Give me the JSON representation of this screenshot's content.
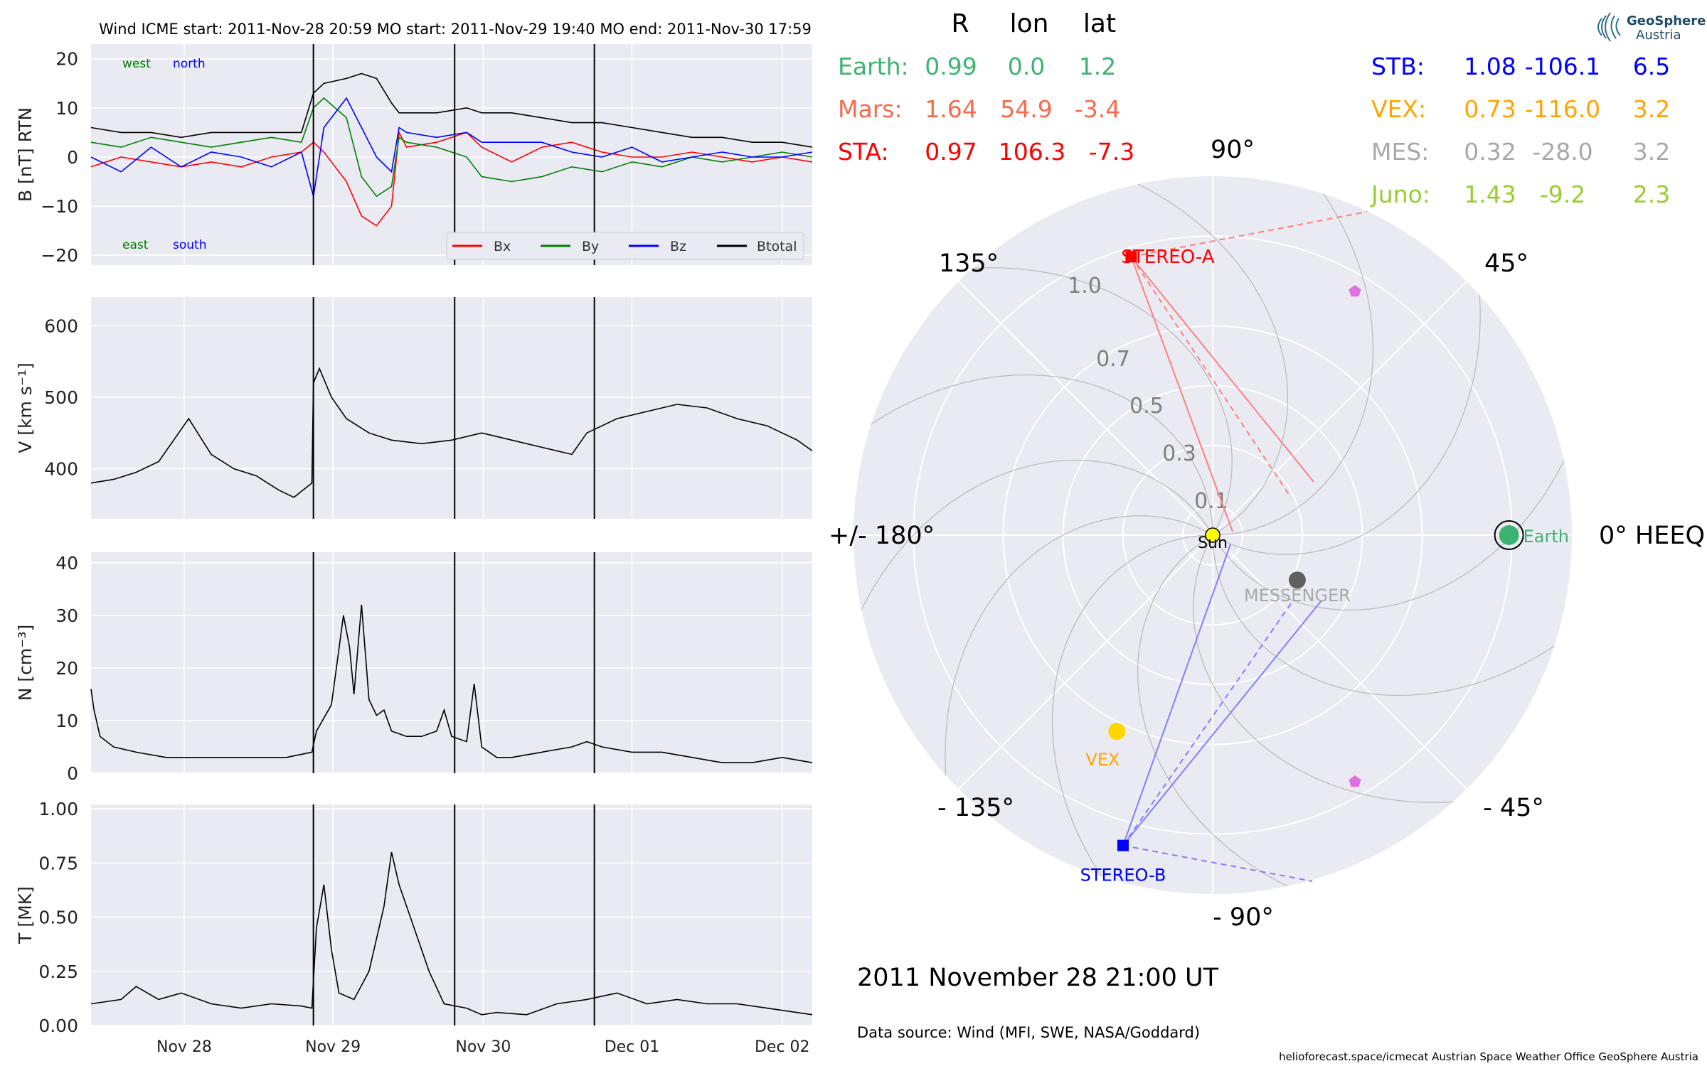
{
  "header": "Wind    ICME start: 2011-Nov-28 20:59   MO start: 2011-Nov-29 19:40   MO end: 2011-Nov-30 17:59",
  "colors": {
    "panel_bg": "#eaeaf2",
    "grid": "#ffffff",
    "bx": "#ff0000",
    "by": "#008000",
    "bz": "#0000ff",
    "btotal": "#000000",
    "earth": "#3cb371",
    "mars": "#fa6a4a",
    "sta": "#ff0000",
    "stb": "#0000ff",
    "vex": "#ffa500",
    "mes": "#a9a9a9",
    "juno": "#9acd32",
    "sun": "#ffff00"
  },
  "chart_data": [
    {
      "type": "line",
      "ylabel": "B [nT] RTN",
      "ylim": [
        -22,
        23
      ],
      "yticks": [
        "20",
        "10",
        "0",
        "−10",
        "−20"
      ],
      "ytick_values": [
        20,
        10,
        0,
        -10,
        -20
      ],
      "annotations": {
        "west": "west",
        "north": "north",
        "east": "east",
        "south": "south"
      },
      "legend": [
        "Bx",
        "By",
        "Bz",
        "Btotal"
      ],
      "legend_position": "lower-right",
      "grid": true,
      "series": [
        {
          "name": "Bx",
          "color": "#ff0000",
          "x": [
            0.0,
            0.2,
            0.4,
            0.6,
            0.8,
            1.0,
            1.2,
            1.4,
            1.48,
            1.55,
            1.7,
            1.8,
            1.9,
            2.0,
            2.05,
            2.1,
            2.3,
            2.5,
            2.6,
            2.8,
            3.0,
            3.2,
            3.4,
            3.6,
            3.8,
            4.0,
            4.2,
            4.4,
            4.6,
            4.8
          ],
          "values": [
            -2,
            0,
            -1,
            -2,
            -1,
            -2,
            0,
            1,
            3,
            1,
            -5,
            -12,
            -14,
            -10,
            5,
            2,
            3,
            5,
            2,
            -1,
            2,
            3,
            1,
            0,
            0,
            1,
            0,
            -1,
            0,
            -1
          ]
        },
        {
          "name": "By",
          "color": "#008000",
          "x": [
            0.0,
            0.2,
            0.4,
            0.6,
            0.8,
            1.0,
            1.2,
            1.4,
            1.48,
            1.55,
            1.7,
            1.8,
            1.9,
            2.0,
            2.05,
            2.1,
            2.3,
            2.5,
            2.6,
            2.8,
            3.0,
            3.2,
            3.4,
            3.6,
            3.8,
            4.0,
            4.2,
            4.4,
            4.6,
            4.8
          ],
          "values": [
            3,
            2,
            4,
            3,
            2,
            3,
            4,
            3,
            10,
            12,
            8,
            -4,
            -8,
            -6,
            4,
            3,
            2,
            0,
            -4,
            -5,
            -4,
            -2,
            -3,
            -1,
            -2,
            0,
            -1,
            0,
            1,
            0
          ]
        },
        {
          "name": "Bz",
          "color": "#0000ff",
          "x": [
            0.0,
            0.2,
            0.4,
            0.6,
            0.8,
            1.0,
            1.2,
            1.4,
            1.48,
            1.55,
            1.7,
            1.8,
            1.9,
            2.0,
            2.05,
            2.1,
            2.3,
            2.5,
            2.6,
            2.8,
            3.0,
            3.2,
            3.4,
            3.6,
            3.8,
            4.0,
            4.2,
            4.4,
            4.6,
            4.8
          ],
          "values": [
            0,
            -3,
            2,
            -2,
            1,
            0,
            -2,
            1,
            -8,
            6,
            12,
            6,
            0,
            -3,
            6,
            5,
            4,
            5,
            3,
            3,
            3,
            1,
            0,
            2,
            -1,
            0,
            1,
            0,
            0,
            1
          ]
        },
        {
          "name": "Btotal",
          "color": "#000000",
          "x": [
            0.0,
            0.2,
            0.4,
            0.6,
            0.8,
            1.0,
            1.2,
            1.4,
            1.48,
            1.55,
            1.7,
            1.8,
            1.9,
            2.0,
            2.05,
            2.1,
            2.3,
            2.5,
            2.6,
            2.8,
            3.0,
            3.2,
            3.4,
            3.6,
            3.8,
            4.0,
            4.2,
            4.4,
            4.6,
            4.8
          ],
          "values": [
            6,
            5,
            5,
            4,
            5,
            5,
            5,
            5,
            13,
            15,
            16,
            17,
            16,
            11,
            9,
            9,
            9,
            10,
            9,
            9,
            8,
            7,
            7,
            6,
            5,
            4,
            4,
            3,
            3,
            2
          ]
        }
      ]
    },
    {
      "type": "line",
      "ylabel": "V [km s⁻¹]",
      "ylim": [
        330,
        640
      ],
      "yticks": [
        "600",
        "500",
        "400"
      ],
      "ytick_values": [
        600,
        500,
        400
      ],
      "grid": true,
      "series": [
        {
          "name": "V",
          "color": "#000000",
          "x": [
            0.0,
            0.15,
            0.3,
            0.45,
            0.55,
            0.65,
            0.8,
            0.95,
            1.1,
            1.25,
            1.35,
            1.47,
            1.48,
            1.52,
            1.6,
            1.7,
            1.85,
            2.0,
            2.2,
            2.4,
            2.6,
            2.8,
            3.0,
            3.2,
            3.3,
            3.5,
            3.7,
            3.9,
            4.1,
            4.3,
            4.5,
            4.7,
            4.8
          ],
          "values": [
            380,
            385,
            395,
            410,
            440,
            470,
            420,
            400,
            390,
            370,
            360,
            380,
            520,
            540,
            500,
            470,
            450,
            440,
            435,
            440,
            450,
            440,
            430,
            420,
            450,
            470,
            480,
            490,
            485,
            470,
            460,
            440,
            425
          ]
        }
      ]
    },
    {
      "type": "line",
      "ylabel": "N [cm⁻³]",
      "ylim": [
        0,
        42
      ],
      "yticks": [
        "40",
        "30",
        "20",
        "10",
        "0"
      ],
      "ytick_values": [
        40,
        30,
        20,
        10,
        0
      ],
      "grid": true,
      "series": [
        {
          "name": "N",
          "color": "#000000",
          "x": [
            0.0,
            0.02,
            0.06,
            0.15,
            0.3,
            0.5,
            0.7,
            0.9,
            1.1,
            1.3,
            1.47,
            1.5,
            1.6,
            1.68,
            1.72,
            1.75,
            1.8,
            1.85,
            1.9,
            1.95,
            2.0,
            2.1,
            2.2,
            2.3,
            2.35,
            2.4,
            2.5,
            2.55,
            2.6,
            2.7,
            2.8,
            3.0,
            3.2,
            3.3,
            3.4,
            3.6,
            3.8,
            4.0,
            4.2,
            4.4,
            4.6,
            4.8
          ],
          "values": [
            16,
            12,
            7,
            5,
            4,
            3,
            3,
            3,
            3,
            3,
            4,
            8,
            13,
            30,
            24,
            15,
            32,
            14,
            11,
            12,
            8,
            7,
            7,
            8,
            12,
            7,
            6,
            17,
            5,
            3,
            3,
            4,
            5,
            6,
            5,
            4,
            4,
            3,
            2,
            2,
            3,
            2
          ]
        }
      ]
    },
    {
      "type": "line",
      "ylabel": "T [MK]",
      "ylim": [
        0,
        1.02
      ],
      "yticks": [
        "1.00",
        "0.75",
        "0.50",
        "0.25",
        "0.00"
      ],
      "ytick_values": [
        1.0,
        0.75,
        0.5,
        0.25,
        0.0
      ],
      "xticks": [
        "Nov 28",
        "Nov 29",
        "Nov 30",
        "Dec 01",
        "Dec 02"
      ],
      "xtick_values": [
        0.62,
        1.61,
        2.61,
        3.6,
        4.6
      ],
      "grid": true,
      "series": [
        {
          "name": "T",
          "color": "#000000",
          "x": [
            0.0,
            0.2,
            0.3,
            0.45,
            0.6,
            0.8,
            1.0,
            1.2,
            1.4,
            1.47,
            1.5,
            1.55,
            1.6,
            1.65,
            1.75,
            1.85,
            1.95,
            2.0,
            2.05,
            2.15,
            2.25,
            2.35,
            2.5,
            2.6,
            2.7,
            2.9,
            3.1,
            3.3,
            3.5,
            3.7,
            3.9,
            4.1,
            4.3,
            4.5,
            4.8
          ],
          "values": [
            0.1,
            0.12,
            0.18,
            0.12,
            0.15,
            0.1,
            0.08,
            0.1,
            0.09,
            0.08,
            0.45,
            0.65,
            0.35,
            0.15,
            0.12,
            0.25,
            0.55,
            0.8,
            0.65,
            0.45,
            0.25,
            0.1,
            0.08,
            0.05,
            0.06,
            0.05,
            0.1,
            0.12,
            0.15,
            0.1,
            0.12,
            0.1,
            0.1,
            0.08,
            0.05
          ]
        }
      ]
    },
    {
      "type": "scatter",
      "subtype": "polar-orbit",
      "angle_labels": {
        "a0": "0° HEEQ",
        "a45": "45°",
        "a90": "90°",
        "a135": "135°",
        "a180": "+/- 180°",
        "am135": "- 135°",
        "am90": "- 90°",
        "am45": "- 45°"
      },
      "radial_labels": [
        "1.0",
        "0.7",
        "0.5",
        "0.3",
        "0.1"
      ],
      "radial_values": [
        1.0,
        0.7,
        0.5,
        0.3,
        0.1
      ],
      "bodies": [
        {
          "name": "Sun",
          "label": "Sun",
          "r": 0.0,
          "lon": 0.0
        },
        {
          "name": "Earth",
          "label": "Earth",
          "r": 0.99,
          "lon": 0.0
        },
        {
          "name": "STEREO-A",
          "label": "STEREO-A",
          "r": 0.97,
          "lon": 106.3
        },
        {
          "name": "STEREO-B",
          "label": "STEREO-B",
          "r": 1.08,
          "lon": -106.1
        },
        {
          "name": "VEX",
          "label": "VEX",
          "r": 0.73,
          "lon": -116.0
        },
        {
          "name": "MESSENGER",
          "label": "MESSENGER",
          "r": 0.32,
          "lon": -28.0
        },
        {
          "name": "Mars",
          "r": 1.64,
          "lon": 54.9
        },
        {
          "name": "Juno",
          "r": 1.43,
          "lon": -9.2
        }
      ]
    }
  ],
  "position_table": {
    "header": {
      "r": "R",
      "lon": "lon",
      "lat": "lat"
    },
    "left": [
      {
        "name": "Earth:",
        "r": "0.99",
        "lon": "0.0",
        "lat": "1.2"
      },
      {
        "name": "Mars:",
        "r": "1.64",
        "lon": "54.9",
        "lat": "-3.4"
      },
      {
        "name": "STA:",
        "r": "0.97",
        "lon": "106.3",
        "lat": "-7.3"
      }
    ],
    "right": [
      {
        "name": "STB:",
        "r": "1.08",
        "lon": "-106.1",
        "lat": "6.5"
      },
      {
        "name": "VEX:",
        "r": "0.73",
        "lon": "-116.0",
        "lat": "3.2"
      },
      {
        "name": "MES:",
        "r": "0.32",
        "lon": "-28.0",
        "lat": "3.2"
      },
      {
        "name": "Juno:",
        "r": "1.43",
        "lon": "-9.2",
        "lat": "2.3"
      }
    ]
  },
  "date_text": "2011 November 28  21:00 UT",
  "source_text": "Data source: Wind (MFI, SWE, NASA/Goddard)",
  "footer": "helioforecast.space/icmecat   Austrian Space Weather Office   GeoSphere Austria",
  "logo": {
    "line1": "GeoSphere",
    "line2": "Austria"
  }
}
